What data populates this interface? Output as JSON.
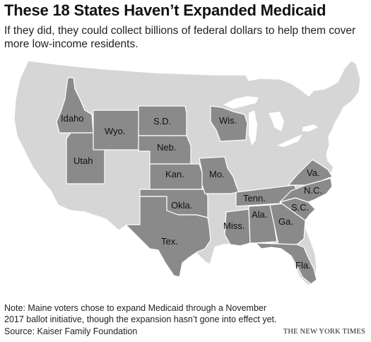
{
  "header": {
    "title": "These 18 States Haven’t Expanded Medicaid",
    "subtitle": "If they did, they could collect billions of federal dollars to help them cover more low-income residents."
  },
  "map": {
    "colors": {
      "not_expanded": "#8a8a8a",
      "other_states": "#d6d6d6",
      "borders": "#ffffff"
    },
    "states": [
      {
        "id": "idaho",
        "label": "Idaho"
      },
      {
        "id": "wyoming",
        "label": "Wyo."
      },
      {
        "id": "south-dakota",
        "label": "S.D."
      },
      {
        "id": "wisconsin",
        "label": "Wis."
      },
      {
        "id": "nebraska",
        "label": "Neb."
      },
      {
        "id": "utah",
        "label": "Utah"
      },
      {
        "id": "kansas",
        "label": "Kan."
      },
      {
        "id": "missouri",
        "label": "Mo."
      },
      {
        "id": "virginia",
        "label": "Va."
      },
      {
        "id": "tennessee",
        "label": "Tenn."
      },
      {
        "id": "north-carolina",
        "label": "N.C."
      },
      {
        "id": "oklahoma",
        "label": "Okla."
      },
      {
        "id": "south-carolina",
        "label": "S.C."
      },
      {
        "id": "alabama",
        "label": "Ala."
      },
      {
        "id": "georgia",
        "label": "Ga."
      },
      {
        "id": "mississippi",
        "label": "Miss."
      },
      {
        "id": "texas",
        "label": "Tex."
      },
      {
        "id": "florida",
        "label": "Fla."
      }
    ]
  },
  "footer": {
    "note": "Note: Maine voters chose to expand Medicaid through a November 2017 ballot initiative, though the expansion hasn’t gone into effect yet.",
    "source": "Source: Kaiser Family Foundation",
    "credit": "THE NEW YORK TIMES"
  }
}
